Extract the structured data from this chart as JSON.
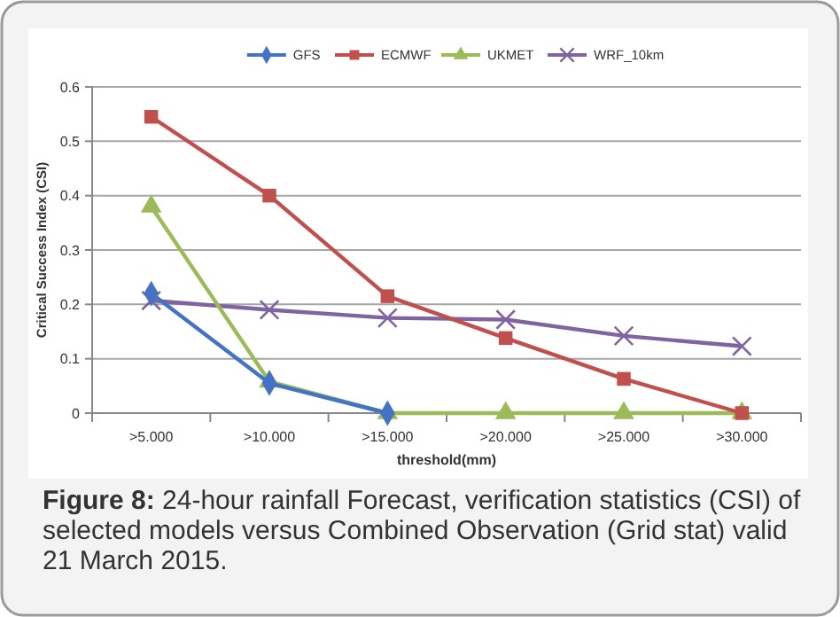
{
  "chart_data": {
    "type": "line",
    "xlabel": "threshold(mm)",
    "ylabel": "Critical Success Index (CSI)",
    "annotations": [
      "Figure 8:",
      "24-hour rainfall Forecast, verification statistics (CSI) of selected models versus Combined Observation (Grid stat) valid 21 March 2015."
    ],
    "categories": [
      ">5.000",
      ">10.000",
      ">15.000",
      ">20.000",
      ">25.000",
      ">30.000"
    ],
    "series": [
      {
        "name": "GFS",
        "color": "#4472c4",
        "marker": "diamond",
        "values": [
          0.22,
          0.055,
          0,
          null,
          null,
          null
        ]
      },
      {
        "name": "ECMWF",
        "color": "#c0504d",
        "marker": "square",
        "values": [
          0.545,
          0.4,
          0.215,
          0.138,
          0.063,
          0
        ]
      },
      {
        "name": "UKMET",
        "color": "#9bbb59",
        "marker": "triangle",
        "values": [
          0.38,
          0.058,
          0,
          0,
          0,
          0
        ]
      },
      {
        "name": "WRF_10km",
        "color": "#8064a2",
        "marker": "cross",
        "values": [
          0.207,
          0.19,
          0.175,
          0.172,
          0.142,
          0.123
        ]
      }
    ],
    "ylim": [
      0,
      0.6
    ],
    "yticks": [
      0,
      0.1,
      0.2,
      0.3,
      0.4,
      0.5,
      0.6
    ],
    "grid": "y",
    "legend": "top"
  }
}
